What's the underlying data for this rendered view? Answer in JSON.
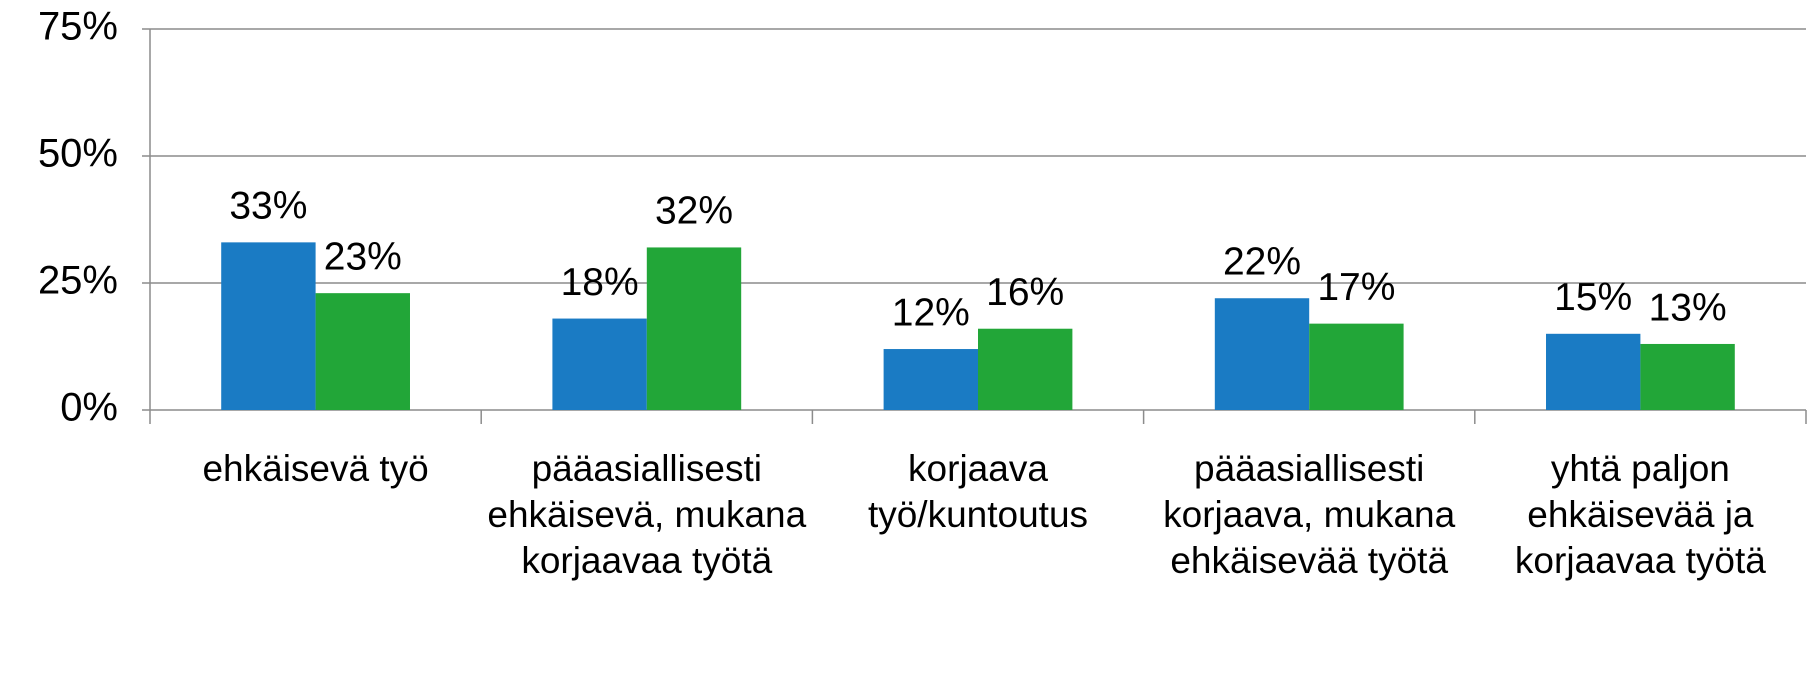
{
  "chart_data": {
    "type": "bar",
    "categories": [
      "ehkäisevä työ",
      "pääasiallisesti ehkäisevä, mukana korjaavaa työtä",
      "korjaava työ/kuntoutus",
      "pääasiallisesti korjaava, mukana ehkäisevää työtä",
      "yhtä paljon ehkäisevää ja korjaavaa työtä"
    ],
    "series": [
      {
        "color": "#1a7bc4",
        "values": [
          33,
          18,
          12,
          22,
          15
        ],
        "value_labels": [
          "33%",
          "18%",
          "12%",
          "22%",
          "15%"
        ]
      },
      {
        "color": "#22a638",
        "values": [
          23,
          32,
          16,
          17,
          13
        ],
        "value_labels": [
          "23%",
          "32%",
          "16%",
          "17%",
          "13%"
        ]
      }
    ],
    "ylim": [
      0,
      75
    ],
    "yticks": [
      {
        "value": 0,
        "label": "0%"
      },
      {
        "value": 25,
        "label": "25%"
      },
      {
        "value": 50,
        "label": "50%"
      },
      {
        "value": 75,
        "label": "75%"
      }
    ],
    "grid": true
  }
}
